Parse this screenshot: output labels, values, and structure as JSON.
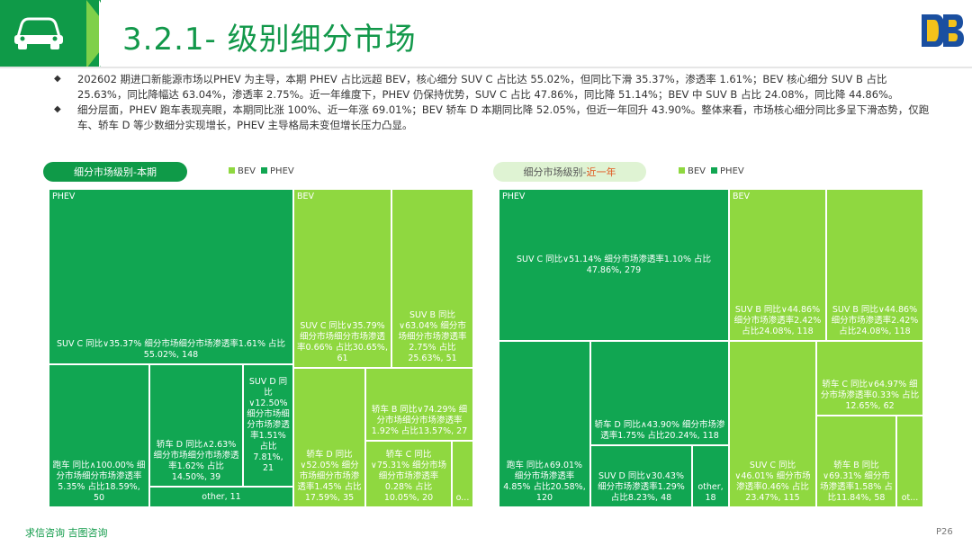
{
  "header": {
    "title": "3.2.1- 级别细分市场",
    "logo_text": "DB",
    "car_icon": "car-icon"
  },
  "bullets": [
    "202602 期进口新能源市场以PHEV 为主导，本期 PHEV 占比远超 BEV，核心细分 SUV C 占比达 55.02%，但同比下滑 35.37%，渗透率 1.61%；BEV 核心细分 SUV B 占比 25.63%，同比降幅达 63.04%，渗透率 2.75%。近一年维度下，PHEV 仍保持优势，SUV C 占比 47.86%，同比降 51.14%；BEV 中 SUV B 占比 24.08%，同比降 44.86%。",
    "细分层面，PHEV 跑车表现亮眼，本期同比涨 100%、近一年涨 69.01%；BEV 轿车 D 本期同比降 52.05%，但近一年回升 43.90%。整体来看，市场核心细分同比多呈下滑态势，仅跑车、轿车 D 等少数细分实现增长，PHEV 主导格局未变但增长压力凸显。"
  ],
  "colors": {
    "phev": "#11a652",
    "bev": "#8fd840",
    "brand": "#0f9a48",
    "highlight": "#e0561d"
  },
  "legend": {
    "bev": "BEV",
    "phev": "PHEV"
  },
  "panels": {
    "left": {
      "title": "细分市场级别-本期"
    },
    "right": {
      "title_prefix": "细分市场级别-",
      "title_highlight": "近一年"
    }
  },
  "chart_data": [
    {
      "type": "treemap",
      "title": "细分市场级别-本期",
      "groups": [
        {
          "name": "PHEV",
          "cells": [
            {
              "key": "p-suvc",
              "label": "SUV C 同比∨35.37% 细分市场细分市场渗透率1.61% 占比55.02%, 148",
              "value": 148
            },
            {
              "key": "p-sports",
              "label": "跑车 同比∧100.00% 细分市场细分市场渗透率5.35% 占比18.59%, 50",
              "value": 50
            },
            {
              "key": "p-sedand",
              "label": "轿车 D 同比∧2.63% 细分市场细分市场渗透率1.62% 占比14.50%, 39",
              "value": 39
            },
            {
              "key": "p-suvd",
              "label": "SUV D 同比∨12.50% 细分市场细分市场渗透率1.51% 占比7.81%, 21",
              "value": 21
            },
            {
              "key": "p-other",
              "label": "other, 11",
              "value": 11
            }
          ]
        },
        {
          "name": "BEV",
          "cells": [
            {
              "key": "b-suvc",
              "label": "SUV C 同比∨35.79% 细分市场细分市场渗透率0.66% 占比30.65%, 61",
              "value": 61
            },
            {
              "key": "b-suvb",
              "label": "SUV B 同比∨63.04% 细分市场细分市场渗透率2.75% 占比25.63%, 51",
              "value": 51
            },
            {
              "key": "b-sedand",
              "label": "轿车 D 同比∨52.05% 细分市场细分市场渗透率1.45% 占比17.59%, 35",
              "value": 35
            },
            {
              "key": "b-sedanb",
              "label": "轿车 B 同比∨74.29% 细分市场细分市场渗透率1.92% 占比13.57%, 27",
              "value": 27
            },
            {
              "key": "b-sedanc",
              "label": "轿车 C 同比∨75.31% 细分市场细分市场渗透率0.28% 占比10.05%, 20",
              "value": 20
            },
            {
              "key": "b-other",
              "label": "o...",
              "value": 5
            }
          ]
        }
      ]
    },
    {
      "type": "treemap",
      "title": "细分市场级别-近一年",
      "groups": [
        {
          "name": "PHEV",
          "cells": [
            {
              "key": "p-suvc",
              "label": "SUV C 同比∨51.14% 细分市场渗透率1.10% 占比47.86%, 279",
              "value": 279
            },
            {
              "key": "p-sports",
              "label": "跑车 同比∧69.01% 细分市场渗透率4.85% 占比20.58%, 120",
              "value": 120
            },
            {
              "key": "p-sedand",
              "label": "轿车 D 同比∧43.90% 细分市场渗透率1.75% 占比20.24%, 118",
              "value": 118
            },
            {
              "key": "p-suvd",
              "label": "SUV D 同比∨30.43% 细分市场渗透率1.29% 占比8.23%, 48",
              "value": 48
            },
            {
              "key": "p-other",
              "label": "other, 18",
              "value": 18
            }
          ]
        },
        {
          "name": "BEV",
          "cells": [
            {
              "key": "b-suvb1",
              "label": "SUV B 同比∨44.86% 细分市场渗透率2.42% 占比24.08%, 118",
              "value": 118
            },
            {
              "key": "b-suvb2",
              "label": "SUV B 同比∨44.86% 细分市场渗透率2.42% 占比24.08%, 118",
              "value": 118
            },
            {
              "key": "b-suvc",
              "label": "SUV C 同比∨46.01% 细分市场渗透率0.46% 占比23.47%, 115",
              "value": 115
            },
            {
              "key": "b-sedanc",
              "label": "轿车 C 同比∨64.97% 细分市场渗透率0.33% 占比12.65%, 62",
              "value": 62
            },
            {
              "key": "b-sedanb",
              "label": "轿车 B 同比∨69.31% 细分市场渗透率1.58% 占比11.84%, 58",
              "value": 58
            },
            {
              "key": "b-other",
              "label": "ot...",
              "value": 19
            }
          ]
        }
      ]
    }
  ],
  "footer": {
    "left": "求信咨询 吉图咨询",
    "page": "P26"
  }
}
